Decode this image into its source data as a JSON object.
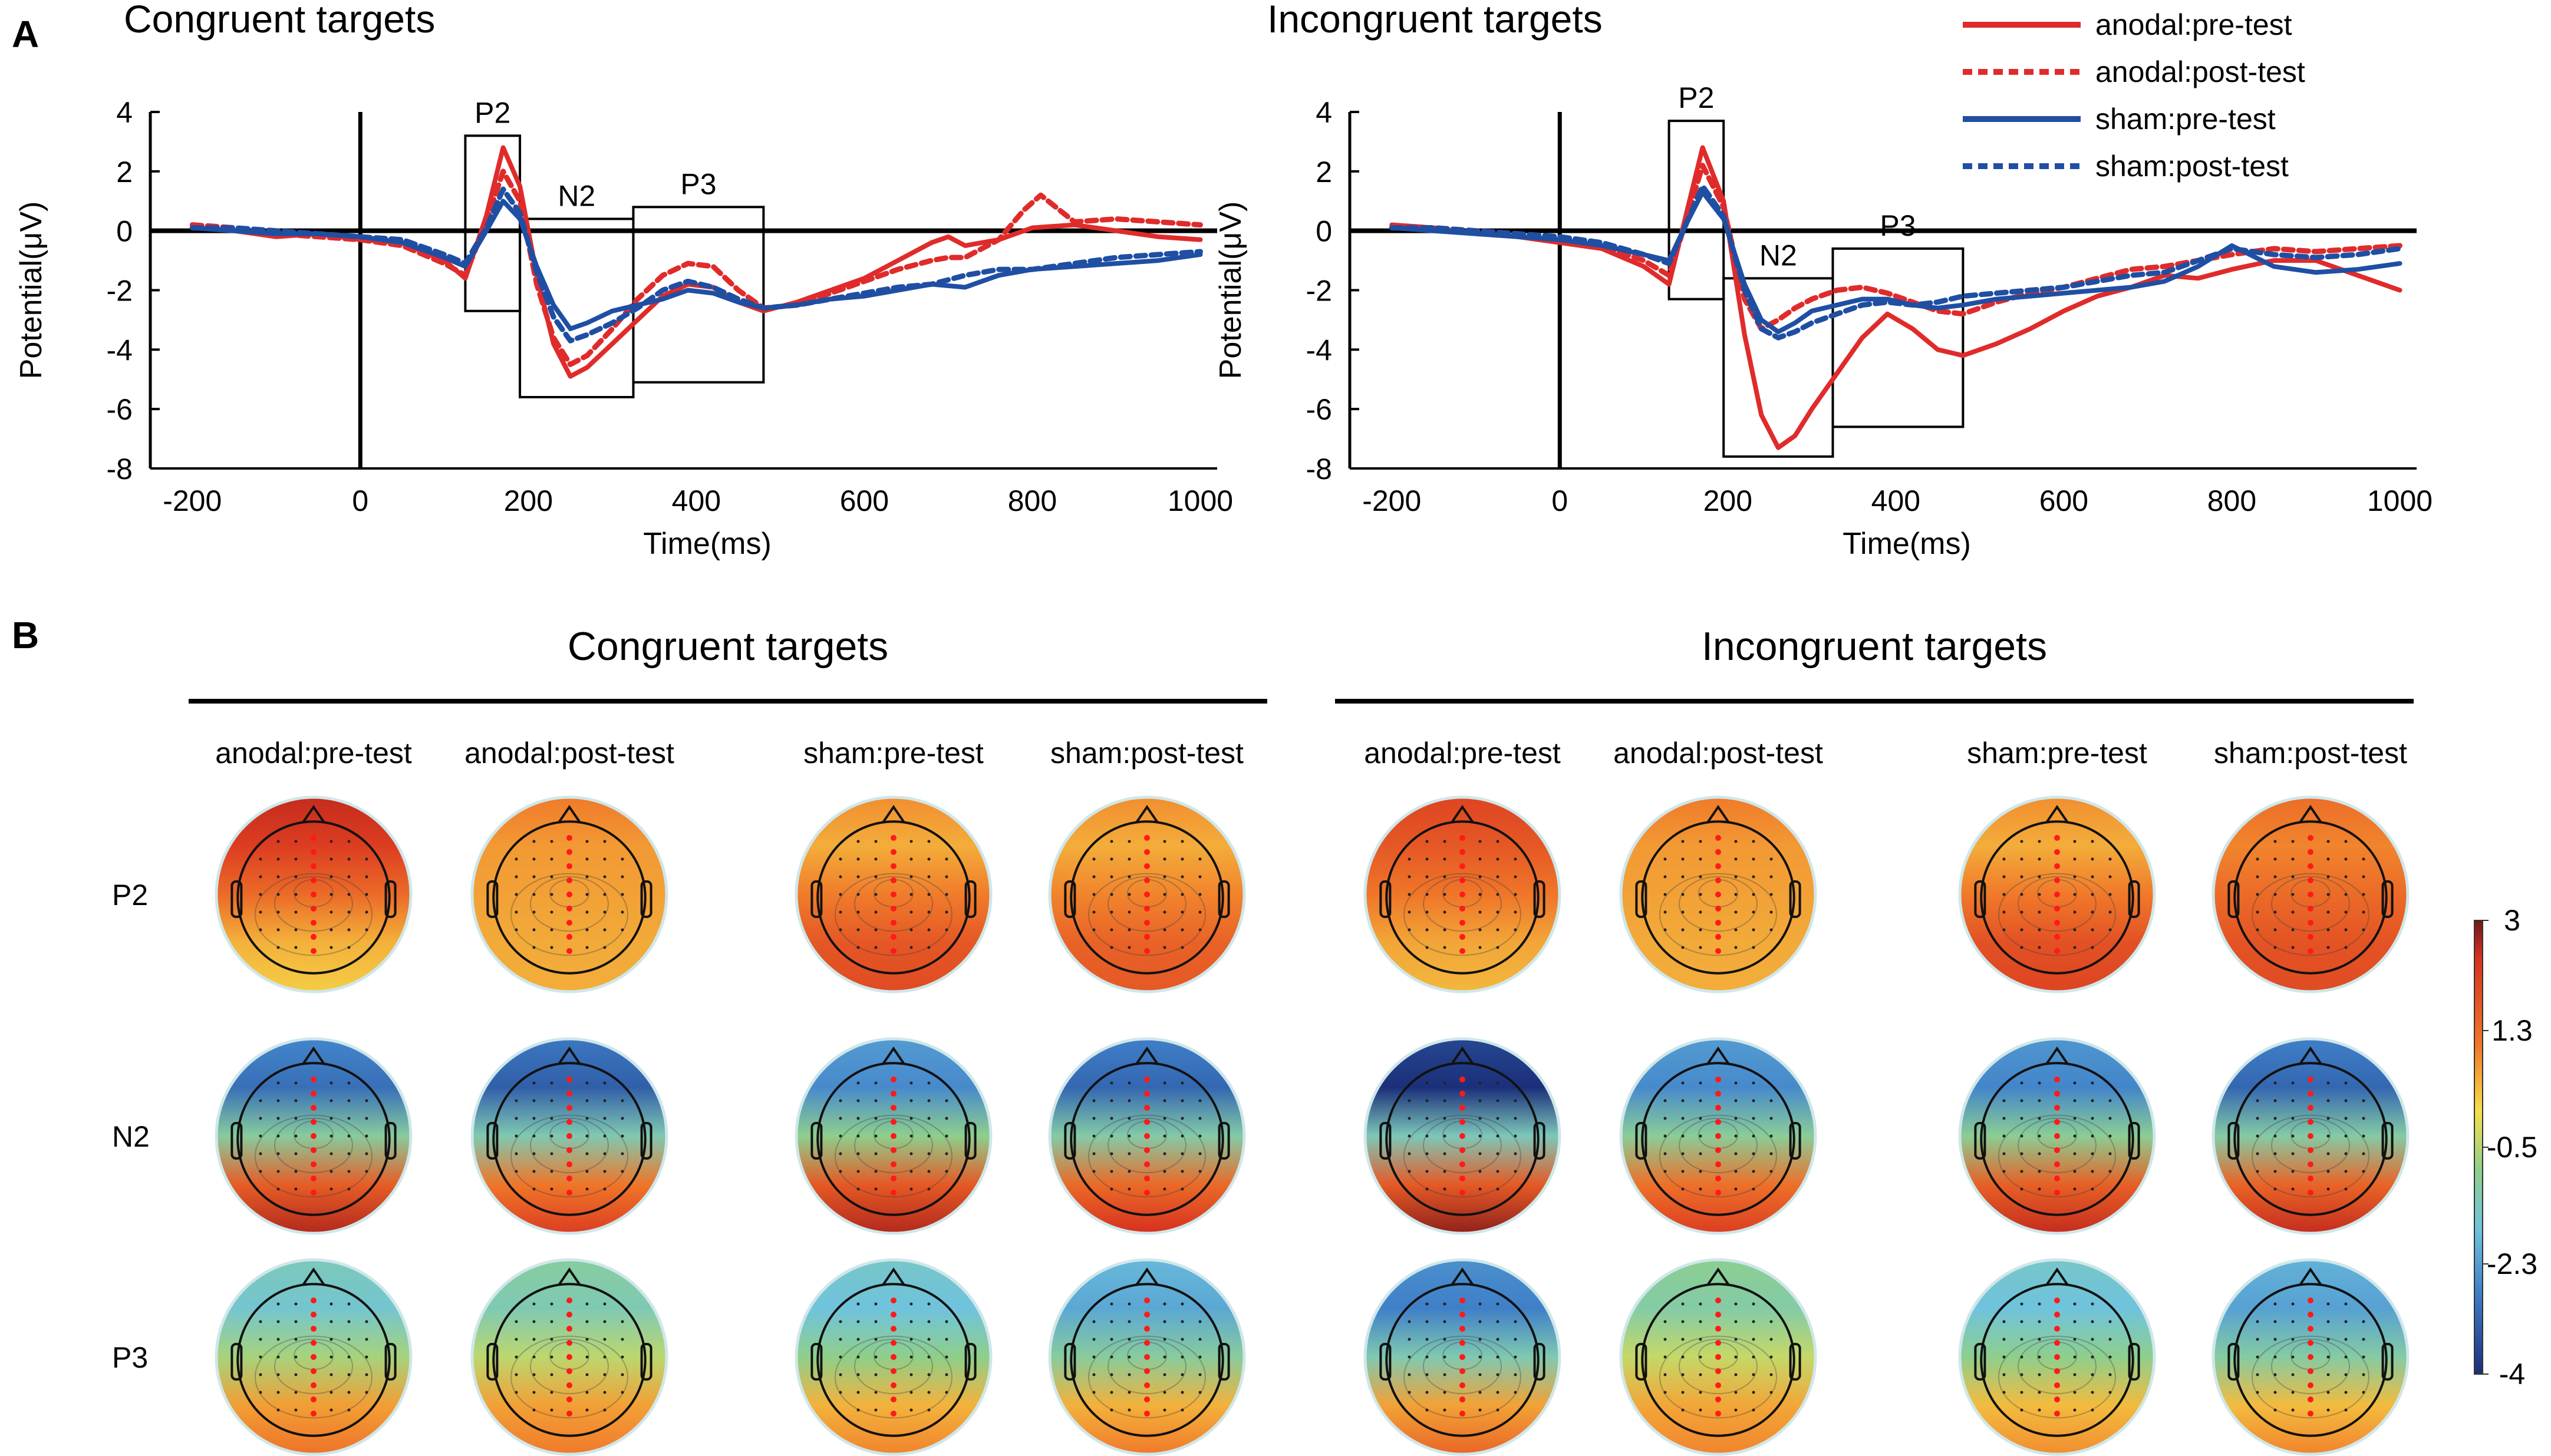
{
  "panel_a_label": "A",
  "panel_b_label": "B",
  "colors": {
    "anodal": "#e02b2b",
    "sham": "#1f4fa3",
    "axis": "#000000"
  },
  "chart_data": [
    {
      "type": "line",
      "title": "Congruent targets",
      "xlabel": "Time(ms)",
      "ylabel": "Potential(μV)",
      "xlim": [
        -250,
        1020
      ],
      "ylim": [
        -8,
        4
      ],
      "xticks": [
        -200,
        0,
        200,
        400,
        600,
        800,
        1000
      ],
      "yticks": [
        4,
        2,
        0,
        -2,
        -4,
        -6,
        -8
      ],
      "windows": [
        {
          "label": "P2",
          "x": [
            125,
            190
          ],
          "y": [
            -2.7,
            3.2
          ]
        },
        {
          "label": "N2",
          "x": [
            190,
            325
          ],
          "y": [
            -5.6,
            0.4
          ]
        },
        {
          "label": "P3",
          "x": [
            325,
            480
          ],
          "y": [
            -5.1,
            0.8
          ]
        }
      ],
      "series": [
        {
          "name": "anodal:pre-test",
          "x": [
            -200,
            -150,
            -100,
            -50,
            0,
            50,
            100,
            125,
            150,
            170,
            190,
            210,
            230,
            250,
            270,
            300,
            330,
            360,
            390,
            420,
            450,
            480,
            520,
            560,
            600,
            640,
            680,
            700,
            720,
            760,
            800,
            850,
            900,
            950,
            1000
          ],
          "y": [
            0.1,
            0,
            -0.2,
            -0.1,
            -0.3,
            -0.4,
            -1.0,
            -1.6,
            0.5,
            2.8,
            1.5,
            -1.5,
            -3.8,
            -4.9,
            -4.6,
            -3.8,
            -3.0,
            -2.2,
            -1.8,
            -1.9,
            -2.4,
            -2.7,
            -2.4,
            -2.0,
            -1.6,
            -1.0,
            -0.4,
            -0.2,
            -0.5,
            -0.3,
            0.1,
            0.2,
            0.0,
            -0.2,
            -0.3
          ]
        },
        {
          "name": "anodal:post-test",
          "x": [
            -200,
            -150,
            -100,
            -50,
            0,
            50,
            100,
            125,
            150,
            170,
            190,
            210,
            230,
            250,
            270,
            300,
            330,
            360,
            390,
            420,
            450,
            480,
            520,
            560,
            600,
            640,
            680,
            700,
            720,
            760,
            790,
            810,
            850,
            900,
            950,
            1000
          ],
          "y": [
            0.2,
            0.1,
            -0.1,
            -0.2,
            -0.3,
            -0.5,
            -1.1,
            -1.5,
            0.3,
            2.0,
            1.0,
            -1.8,
            -3.6,
            -4.5,
            -4.2,
            -3.3,
            -2.3,
            -1.5,
            -1.1,
            -1.2,
            -2.0,
            -2.6,
            -2.5,
            -2.1,
            -1.7,
            -1.3,
            -1.0,
            -0.9,
            -0.9,
            -0.3,
            0.7,
            1.2,
            0.3,
            0.4,
            0.3,
            0.2
          ]
        },
        {
          "name": "sham:pre-test",
          "x": [
            -200,
            -150,
            -100,
            -50,
            0,
            50,
            100,
            125,
            150,
            170,
            190,
            210,
            230,
            250,
            270,
            300,
            330,
            360,
            390,
            420,
            450,
            480,
            520,
            560,
            600,
            640,
            680,
            720,
            760,
            800,
            850,
            900,
            950,
            1000
          ],
          "y": [
            0.1,
            0,
            -0.1,
            -0.1,
            -0.2,
            -0.4,
            -0.9,
            -1.2,
            0,
            1.0,
            0.4,
            -1.2,
            -2.5,
            -3.3,
            -3.1,
            -2.7,
            -2.5,
            -2.3,
            -2.0,
            -2.1,
            -2.4,
            -2.6,
            -2.5,
            -2.3,
            -2.2,
            -2.0,
            -1.8,
            -1.9,
            -1.5,
            -1.3,
            -1.2,
            -1.1,
            -1.0,
            -0.8
          ]
        },
        {
          "name": "sham:post-test",
          "x": [
            -200,
            -150,
            -100,
            -50,
            0,
            50,
            100,
            125,
            150,
            170,
            190,
            210,
            230,
            250,
            270,
            300,
            330,
            360,
            390,
            420,
            450,
            480,
            520,
            560,
            600,
            640,
            680,
            720,
            760,
            800,
            850,
            900,
            950,
            1000
          ],
          "y": [
            0.1,
            0.1,
            0,
            -0.1,
            -0.2,
            -0.3,
            -0.8,
            -1.1,
            0.1,
            1.4,
            0.6,
            -1.4,
            -2.9,
            -3.7,
            -3.5,
            -3.1,
            -2.6,
            -2.0,
            -1.7,
            -1.9,
            -2.3,
            -2.6,
            -2.5,
            -2.3,
            -2.1,
            -1.9,
            -1.8,
            -1.5,
            -1.3,
            -1.3,
            -1.1,
            -0.9,
            -0.8,
            -0.7
          ]
        }
      ]
    },
    {
      "type": "line",
      "title": "Incongruent targets",
      "xlabel": "Time(ms)",
      "ylabel": "Potential(μV)",
      "xlim": [
        -250,
        1020
      ],
      "ylim": [
        -8,
        4
      ],
      "xticks": [
        -200,
        0,
        200,
        400,
        600,
        800,
        1000
      ],
      "yticks": [
        4,
        2,
        0,
        -2,
        -4,
        -6,
        -8
      ],
      "windows": [
        {
          "label": "P2",
          "x": [
            130,
            195
          ],
          "y": [
            -2.3,
            3.7
          ]
        },
        {
          "label": "N2",
          "x": [
            195,
            325
          ],
          "y": [
            -7.6,
            -1.6
          ]
        },
        {
          "label": "P3",
          "x": [
            325,
            480
          ],
          "y": [
            -6.6,
            -0.6
          ]
        }
      ],
      "series": [
        {
          "name": "anodal:pre-test",
          "x": [
            -200,
            -150,
            -100,
            -50,
            0,
            50,
            100,
            130,
            150,
            170,
            195,
            220,
            240,
            260,
            280,
            300,
            330,
            360,
            390,
            420,
            450,
            480,
            520,
            560,
            600,
            640,
            680,
            720,
            760,
            800,
            850,
            900,
            950,
            1000
          ],
          "y": [
            0.2,
            0.1,
            -0.1,
            -0.2,
            -0.4,
            -0.6,
            -1.2,
            -1.8,
            0.5,
            2.8,
            1.0,
            -3.5,
            -6.2,
            -7.3,
            -6.9,
            -6.0,
            -4.8,
            -3.6,
            -2.8,
            -3.3,
            -4.0,
            -4.2,
            -3.8,
            -3.3,
            -2.7,
            -2.2,
            -1.9,
            -1.5,
            -1.6,
            -1.3,
            -1.0,
            -1.0,
            -1.5,
            -2.0
          ]
        },
        {
          "name": "anodal:post-test",
          "x": [
            -200,
            -150,
            -100,
            -50,
            0,
            50,
            100,
            130,
            150,
            170,
            195,
            220,
            240,
            260,
            280,
            300,
            330,
            360,
            390,
            420,
            450,
            480,
            520,
            560,
            600,
            640,
            680,
            720,
            760,
            800,
            850,
            900,
            950,
            1000
          ],
          "y": [
            0.1,
            0.1,
            0,
            -0.1,
            -0.3,
            -0.5,
            -1.0,
            -1.5,
            0.3,
            2.2,
            0.8,
            -2.3,
            -3.3,
            -3.0,
            -2.6,
            -2.3,
            -2.0,
            -1.9,
            -2.1,
            -2.4,
            -2.7,
            -2.8,
            -2.4,
            -2.1,
            -1.9,
            -1.6,
            -1.3,
            -1.2,
            -1.0,
            -0.8,
            -0.6,
            -0.7,
            -0.6,
            -0.5
          ]
        },
        {
          "name": "sham:pre-test",
          "x": [
            -200,
            -150,
            -100,
            -50,
            0,
            50,
            100,
            130,
            150,
            170,
            195,
            220,
            240,
            260,
            280,
            300,
            330,
            360,
            390,
            420,
            450,
            480,
            520,
            560,
            600,
            640,
            680,
            720,
            760,
            800,
            850,
            900,
            950,
            1000
          ],
          "y": [
            0.1,
            0,
            -0.1,
            -0.2,
            -0.3,
            -0.5,
            -0.8,
            -1.0,
            0.2,
            1.3,
            0.4,
            -1.8,
            -3.0,
            -3.4,
            -3.1,
            -2.7,
            -2.5,
            -2.3,
            -2.3,
            -2.5,
            -2.6,
            -2.5,
            -2.3,
            -2.2,
            -2.1,
            -2.0,
            -1.9,
            -1.7,
            -1.2,
            -0.5,
            -1.2,
            -1.4,
            -1.3,
            -1.1
          ]
        },
        {
          "name": "sham:post-test",
          "x": [
            -200,
            -150,
            -100,
            -50,
            0,
            50,
            100,
            130,
            150,
            170,
            195,
            220,
            240,
            260,
            280,
            300,
            330,
            360,
            390,
            420,
            450,
            480,
            520,
            560,
            600,
            640,
            680,
            720,
            760,
            800,
            850,
            900,
            950,
            1000
          ],
          "y": [
            0.1,
            0.1,
            0,
            -0.1,
            -0.2,
            -0.4,
            -0.8,
            -1.1,
            0.2,
            1.5,
            0.5,
            -2.0,
            -3.3,
            -3.6,
            -3.4,
            -3.1,
            -2.8,
            -2.5,
            -2.4,
            -2.5,
            -2.4,
            -2.2,
            -2.1,
            -2.0,
            -1.9,
            -1.7,
            -1.5,
            -1.4,
            -1.0,
            -0.6,
            -0.8,
            -0.9,
            -0.8,
            -0.6
          ]
        }
      ]
    },
    {
      "type": "heatmap",
      "subtype": "scalp-topography",
      "groups": [
        "Congruent targets",
        "Incongruent targets"
      ],
      "columns": [
        "anodal:pre-test",
        "anodal:post-test",
        "sham:pre-test",
        "sham:post-test"
      ],
      "rows": [
        "P2",
        "N2",
        "P3"
      ],
      "colorbar": {
        "ticks": [
          "3",
          "1.3",
          "-0.5",
          "-2.3",
          "-4"
        ],
        "range": [
          -4,
          3
        ]
      },
      "maps": [
        [
          [
            {
              "f": 2.2,
              "b": 0.5
            },
            {
              "f": 1.0,
              "b": 0.8
            },
            {
              "f": 0.8,
              "b": 2.0
            },
            {
              "f": 0.8,
              "b": 1.8
            },
            {
              "f": 1.8,
              "b": 0.7
            },
            {
              "f": 1.0,
              "b": 0.8
            },
            {
              "f": 0.8,
              "b": 2.1
            },
            {
              "f": 1.2,
              "b": 2.0
            }
          ],
          [
            {
              "f": -3.2,
              "b": 2.6
            },
            {
              "f": -3.4,
              "b": 2.2
            },
            {
              "f": -2.8,
              "b": 2.6
            },
            {
              "f": -3.3,
              "b": 2.4
            },
            {
              "f": -4.0,
              "b": 2.8
            },
            {
              "f": -2.8,
              "b": 2.2
            },
            {
              "f": -2.9,
              "b": 2.5
            },
            {
              "f": -3.3,
              "b": 2.5
            }
          ],
          [
            {
              "f": -1.6,
              "b": 1.4
            },
            {
              "f": -1.2,
              "b": 1.3
            },
            {
              "f": -1.8,
              "b": 1.2
            },
            {
              "f": -2.3,
              "b": 1.3
            },
            {
              "f": -3.0,
              "b": 1.6
            },
            {
              "f": -1.0,
              "b": 1.2
            },
            {
              "f": -1.8,
              "b": 1.1
            },
            {
              "f": -2.4,
              "b": 1.2
            }
          ]
        ]
      ]
    }
  ]
}
